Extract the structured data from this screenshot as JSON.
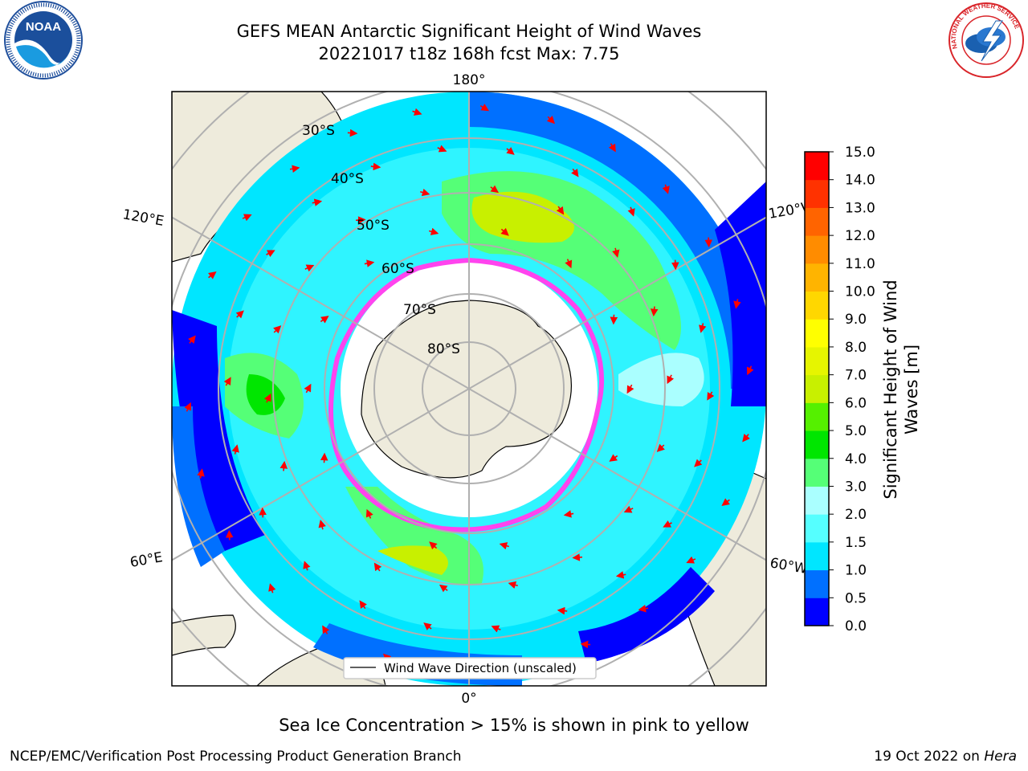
{
  "header": {
    "title_line1": "GEFS MEAN Antarctic Significant Height of Wind Waves",
    "title_line2": "20221017 t18z 168h fcst   Max: 7.75"
  },
  "logos": {
    "left": {
      "icon": "noaa-logo-icon",
      "text": "NOAA"
    },
    "right": {
      "icon": "nws-logo-icon",
      "text": "NATIONAL WEATHER SERVICE"
    }
  },
  "map": {
    "projection": "south-polar-stereographic",
    "longitude_labels": {
      "top": "180°",
      "bottom": "0°",
      "left_upper": "120°E",
      "left_lower": "60°E",
      "right_upper": "120°W",
      "right_lower": "60°W"
    },
    "latitude_labels": [
      "30°S",
      "40°S",
      "50°S",
      "60°S",
      "70°S",
      "80°S"
    ],
    "legend": "Wind Wave Direction (unscaled)",
    "ice_edge_color": "#ff44ee",
    "arrow_color": "#ff0000",
    "land_color": "#eeebdc"
  },
  "colorbar": {
    "label_line1": "Significant Height of Wind",
    "label_line2": "Waves [m]",
    "ticks": [
      "0.0",
      "0.5",
      "1.0",
      "1.5",
      "2.0",
      "3.0",
      "4.0",
      "5.0",
      "6.0",
      "7.0",
      "8.0",
      "9.0",
      "10.0",
      "11.0",
      "12.0",
      "13.0",
      "14.0",
      "15.0"
    ],
    "colors": [
      "#0000ff",
      "#0070ff",
      "#00e6ff",
      "#55ffff",
      "#aaffff",
      "#55ff77",
      "#00e600",
      "#55f000",
      "#c8f000",
      "#e6f500",
      "#ffff00",
      "#ffd700",
      "#ffb400",
      "#ff8c00",
      "#ff6400",
      "#ff3200",
      "#ff0000"
    ]
  },
  "chart_data": {
    "type": "heatmap",
    "title": "GEFS MEAN Antarctic Significant Height of Wind Waves",
    "subtitle": "20221017 t18z 168h fcst   Max: 7.75",
    "colorbar_label": "Significant Height of Wind Waves [m]",
    "colorbar_range": [
      0.0,
      15.0
    ],
    "max_value": 7.75
  },
  "captions": {
    "sea_ice": "Sea Ice Concentration > 15% is shown in pink to yellow"
  },
  "footer": {
    "left": "NCEP/EMC/Verification Post Processing Product Generation Branch",
    "date": "19 Oct 2022 on ",
    "machine": "Hera"
  }
}
